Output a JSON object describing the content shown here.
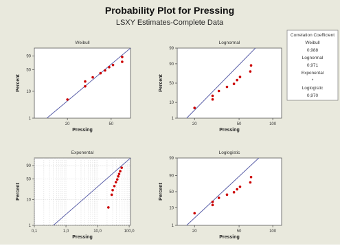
{
  "title": "Probability Plot for Pressing",
  "subtitle": "LSXY Estimates-Complete Data",
  "colors": {
    "background": "#e9e9dd",
    "plot_area": "#ffffff",
    "fit_line": "#5a5fa8",
    "points": "#cc0000",
    "grid": "#cfcfcf"
  },
  "legend": {
    "heading": "Correlation Coefficient",
    "entries": [
      {
        "name": "Weibull",
        "value": "0,988"
      },
      {
        "name": "Lognormal",
        "value": "0,971"
      },
      {
        "name": "Exponental",
        "value": "*"
      },
      {
        "name": "Loglogistic",
        "value": "0,970"
      }
    ]
  },
  "chart_data": [
    {
      "type": "scatter",
      "title": "Weibull",
      "xlabel": "Pressing",
      "ylabel": "Percent",
      "x_scale": "log",
      "xlim": [
        10,
        75
      ],
      "x_ticks": [
        "20",
        "50"
      ],
      "x_tick_values": [
        20,
        50
      ],
      "y_ticks": [
        "90",
        "50",
        "10",
        "1"
      ],
      "y_tick_values": [
        90,
        50,
        10,
        1
      ],
      "ylim": [
        1,
        99
      ],
      "y_distribution": "weibull",
      "grid": false,
      "points": [
        [
          20,
          5
        ],
        [
          29,
          15
        ],
        [
          29,
          22
        ],
        [
          34,
          30
        ],
        [
          40,
          40
        ],
        [
          44,
          48
        ],
        [
          48,
          58
        ],
        [
          52,
          65
        ],
        [
          63,
          75
        ],
        [
          63,
          88
        ]
      ],
      "fit_line": [
        [
          13,
          1
        ],
        [
          75,
          99
        ]
      ]
    },
    {
      "type": "scatter",
      "title": "Lognormal",
      "xlabel": "Pressing",
      "ylabel": "Percent",
      "x_scale": "log",
      "xlim": [
        14,
        120
      ],
      "x_ticks": [
        "20",
        "50",
        "100"
      ],
      "x_tick_values": [
        20,
        50,
        100
      ],
      "y_ticks": [
        "99",
        "90",
        "50",
        "10",
        "1"
      ],
      "y_tick_values": [
        99,
        90,
        50,
        10,
        1
      ],
      "ylim": [
        1,
        99
      ],
      "y_distribution": "normal",
      "grid": false,
      "points": [
        [
          20,
          5
        ],
        [
          29,
          14
        ],
        [
          29,
          20
        ],
        [
          33,
          30
        ],
        [
          39,
          40
        ],
        [
          45,
          48
        ],
        [
          48,
          58
        ],
        [
          51,
          66
        ],
        [
          63,
          78
        ],
        [
          64,
          88
        ]
      ],
      "fit_line": [
        [
          17,
          1
        ],
        [
          70,
          99
        ]
      ]
    },
    {
      "type": "scatter",
      "title": "Exponental",
      "xlabel": "Pressing",
      "ylabel": "Percent",
      "x_scale": "log",
      "xlim": [
        0.1,
        110
      ],
      "x_ticks": [
        "0,1",
        "1,0",
        "10,0",
        "100,0"
      ],
      "x_tick_values": [
        0.1,
        1,
        10,
        100
      ],
      "y_ticks": [
        "90",
        "50",
        "10",
        "1"
      ],
      "y_tick_values": [
        90,
        50,
        10,
        1
      ],
      "ylim": [
        1,
        99
      ],
      "y_distribution": "weibull",
      "grid": true,
      "points": [
        [
          22,
          5
        ],
        [
          28,
          15
        ],
        [
          30,
          22
        ],
        [
          34,
          30
        ],
        [
          38,
          40
        ],
        [
          42,
          48
        ],
        [
          45,
          58
        ],
        [
          48,
          66
        ],
        [
          52,
          75
        ],
        [
          58,
          85
        ]
      ],
      "fit_line": [
        [
          0.4,
          1
        ],
        [
          110,
          99
        ]
      ]
    },
    {
      "type": "scatter",
      "title": "Loglogistic",
      "xlabel": "Pressing",
      "ylabel": "Percent",
      "x_scale": "log",
      "xlim": [
        14,
        120
      ],
      "x_ticks": [
        "20",
        "50",
        "100"
      ],
      "x_tick_values": [
        20,
        50,
        100
      ],
      "y_ticks": [
        "99",
        "90",
        "50",
        "10",
        "1"
      ],
      "y_tick_values": [
        99,
        90,
        50,
        10,
        1
      ],
      "ylim": [
        1,
        99
      ],
      "y_distribution": "logistic",
      "grid": false,
      "points": [
        [
          20,
          5
        ],
        [
          29,
          14
        ],
        [
          29,
          20
        ],
        [
          33,
          30
        ],
        [
          39,
          40
        ],
        [
          45,
          48
        ],
        [
          48,
          58
        ],
        [
          51,
          66
        ],
        [
          63,
          78
        ],
        [
          64,
          88
        ]
      ],
      "fit_line": [
        [
          17,
          1
        ],
        [
          75,
          99
        ]
      ]
    }
  ]
}
